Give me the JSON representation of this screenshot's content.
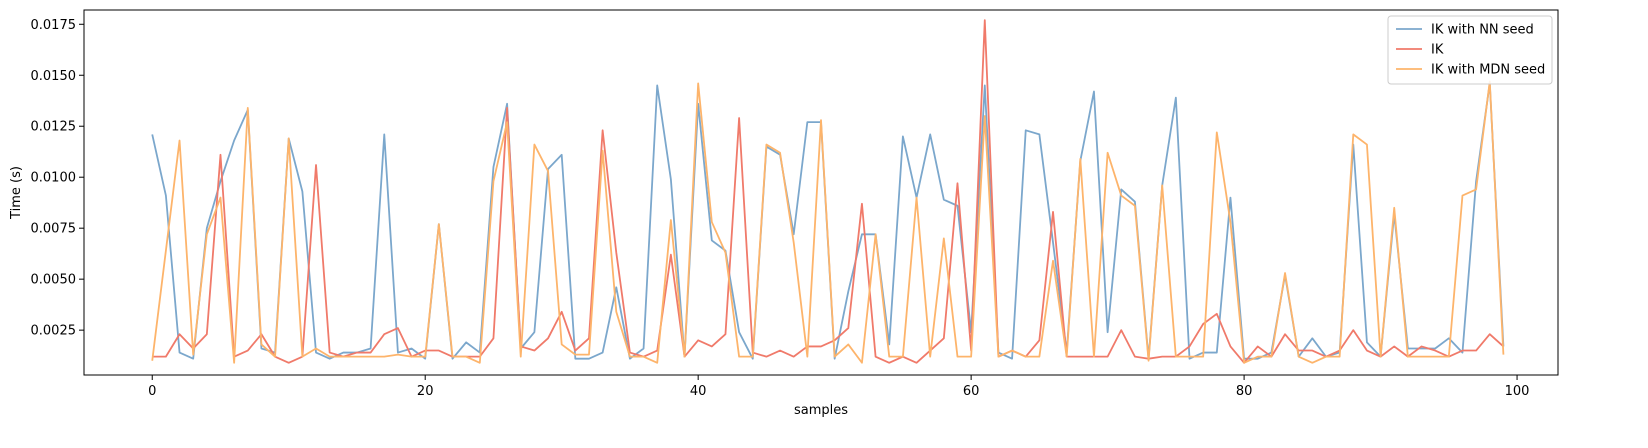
{
  "chart_data": {
    "type": "line",
    "title": "",
    "xlabel": "samples",
    "ylabel": "Time (s)",
    "xlim": [
      -5,
      103
    ],
    "ylim": [
      0.0003,
      0.0182
    ],
    "xticks": [
      0,
      20,
      40,
      60,
      80,
      100
    ],
    "yticks": [
      0.0025,
      0.005,
      0.0075,
      0.01,
      0.0125,
      0.015,
      0.0175
    ],
    "ytick_labels": [
      "0.0025",
      "0.0050",
      "0.0075",
      "0.0100",
      "0.0125",
      "0.0150",
      "0.0175"
    ],
    "grid": false,
    "legend_position": "top-right",
    "x": [
      0,
      1,
      2,
      3,
      4,
      5,
      6,
      7,
      8,
      9,
      10,
      11,
      12,
      13,
      14,
      15,
      16,
      17,
      18,
      19,
      20,
      21,
      22,
      23,
      24,
      25,
      26,
      27,
      28,
      29,
      30,
      31,
      32,
      33,
      34,
      35,
      36,
      37,
      38,
      39,
      40,
      41,
      42,
      43,
      44,
      45,
      46,
      47,
      48,
      49,
      50,
      51,
      52,
      53,
      54,
      55,
      56,
      57,
      58,
      59,
      60,
      61,
      62,
      63,
      64,
      65,
      66,
      67,
      68,
      69,
      70,
      71,
      72,
      73,
      74,
      75,
      76,
      77,
      78,
      79,
      80,
      81,
      82,
      83,
      84,
      85,
      86,
      87,
      88,
      89,
      90,
      91,
      92,
      93,
      94,
      95,
      96,
      97,
      98,
      99
    ],
    "series": [
      {
        "name": "IK with NN seed",
        "color": "#7ba7cc",
        "values": [
          0.0121,
          0.0091,
          0.0014,
          0.0011,
          0.0075,
          0.0098,
          0.0118,
          0.0133,
          0.0016,
          0.0014,
          0.0119,
          0.0093,
          0.0014,
          0.0011,
          0.0014,
          0.0014,
          0.0016,
          0.0121,
          0.0014,
          0.0016,
          0.0011,
          0.0077,
          0.0011,
          0.0019,
          0.0014,
          0.0105,
          0.0136,
          0.0016,
          0.0024,
          0.0104,
          0.0111,
          0.0011,
          0.0011,
          0.0014,
          0.0046,
          0.0011,
          0.0016,
          0.0145,
          0.0099,
          0.0012,
          0.0136,
          0.0069,
          0.0064,
          0.0024,
          0.0011,
          0.0115,
          0.0111,
          0.0072,
          0.0127,
          0.0127,
          0.0011,
          0.0044,
          0.0072,
          0.0072,
          0.0018,
          0.012,
          0.009,
          0.0121,
          0.0089,
          0.0086,
          0.0024,
          0.0145,
          0.0014,
          0.0011,
          0.0123,
          0.0121,
          0.0068,
          0.0014,
          0.0108,
          0.0142,
          0.0024,
          0.0094,
          0.0088,
          0.0011,
          0.0096,
          0.0139,
          0.0011,
          0.0014,
          0.0014,
          0.009,
          0.0011,
          0.0011,
          0.0014,
          0.0052,
          0.0012,
          0.0021,
          0.0012,
          0.0014,
          0.0116,
          0.0019,
          0.0012,
          0.0082,
          0.0016,
          0.0016,
          0.0016,
          0.0021,
          0.0014,
          0.0098,
          0.0146,
          0.0017
        ]
      },
      {
        "name": "IK",
        "color": "#f07a6a",
        "values": [
          0.0012,
          0.0012,
          0.0023,
          0.0016,
          0.0023,
          0.0111,
          0.0012,
          0.0015,
          0.0023,
          0.0012,
          0.0009,
          0.0012,
          0.0106,
          0.0014,
          0.0012,
          0.0014,
          0.0014,
          0.0023,
          0.0026,
          0.0012,
          0.0015,
          0.0015,
          0.0012,
          0.0012,
          0.0012,
          0.0021,
          0.0134,
          0.0017,
          0.0015,
          0.0021,
          0.0034,
          0.0015,
          0.0021,
          0.0123,
          0.0063,
          0.0014,
          0.0012,
          0.0015,
          0.0062,
          0.0012,
          0.002,
          0.0017,
          0.0023,
          0.0129,
          0.0014,
          0.0012,
          0.0015,
          0.0012,
          0.0017,
          0.0017,
          0.002,
          0.0026,
          0.0087,
          0.0012,
          0.0009,
          0.0012,
          0.0009,
          0.0015,
          0.0021,
          0.0097,
          0.0015,
          0.0177,
          0.0012,
          0.0015,
          0.0012,
          0.002,
          0.0083,
          0.0012,
          0.0012,
          0.0012,
          0.0012,
          0.0025,
          0.0012,
          0.0011,
          0.0012,
          0.0012,
          0.0017,
          0.0028,
          0.0033,
          0.0017,
          0.0009,
          0.0017,
          0.0012,
          0.0023,
          0.0015,
          0.0015,
          0.0012,
          0.0015,
          0.0025,
          0.0015,
          0.0012,
          0.0017,
          0.0012,
          0.0017,
          0.0015,
          0.0012,
          0.0015,
          0.0015,
          0.0023,
          0.0017
        ]
      },
      {
        "name": "IK with MDN seed",
        "color": "#fdb46b",
        "values": [
          0.001,
          0.0064,
          0.0118,
          0.0013,
          0.0072,
          0.009,
          0.0009,
          0.0134,
          0.0018,
          0.0012,
          0.0119,
          0.0012,
          0.0016,
          0.0012,
          0.0012,
          0.0012,
          0.0012,
          0.0012,
          0.0013,
          0.0012,
          0.0012,
          0.0077,
          0.0012,
          0.0012,
          0.0009,
          0.0098,
          0.0127,
          0.0012,
          0.0116,
          0.0103,
          0.0018,
          0.0013,
          0.0013,
          0.0113,
          0.0034,
          0.0012,
          0.0012,
          0.0009,
          0.0079,
          0.0012,
          0.0146,
          0.0078,
          0.0063,
          0.0012,
          0.0012,
          0.0116,
          0.0112,
          0.0068,
          0.0012,
          0.0128,
          0.0012,
          0.0018,
          0.0009,
          0.0072,
          0.0012,
          0.0012,
          0.009,
          0.0012,
          0.007,
          0.0012,
          0.0012,
          0.013,
          0.0012,
          0.0015,
          0.0012,
          0.0012,
          0.0059,
          0.0012,
          0.0109,
          0.0012,
          0.0112,
          0.0091,
          0.0086,
          0.001,
          0.0096,
          0.0012,
          0.0012,
          0.0012,
          0.0122,
          0.0078,
          0.0009,
          0.0012,
          0.0012,
          0.0053,
          0.0012,
          0.0009,
          0.0012,
          0.0012,
          0.0121,
          0.0116,
          0.0012,
          0.0085,
          0.0012,
          0.0012,
          0.0012,
          0.0012,
          0.0091,
          0.0094,
          0.0147,
          0.0013
        ]
      }
    ]
  }
}
